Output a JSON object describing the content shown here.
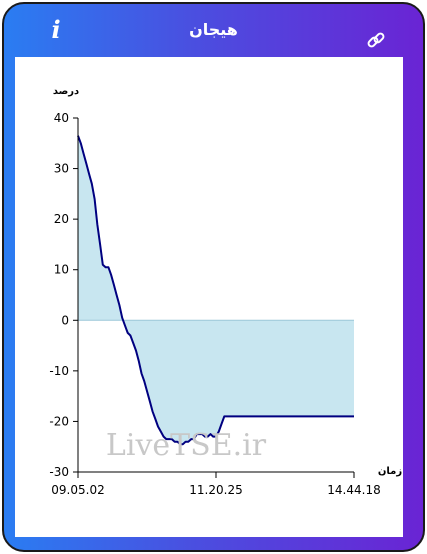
{
  "header": {
    "title": "هیجان",
    "info_icon": "i",
    "link_icon": "link-icon"
  },
  "colors": {
    "gradient_start": "#2a7df2",
    "gradient_end": "#6a24d4",
    "line": "#000080",
    "fill": "#c8e6f0"
  },
  "watermark": "LiveTSE.ir",
  "chart_data": {
    "type": "area",
    "ylabel": "درصد",
    "xlabel": "زمان",
    "ylim": [
      -30,
      40
    ],
    "yticks": [
      40,
      30,
      20,
      10,
      0,
      -10,
      -20,
      -30
    ],
    "xticks": [
      "09.05.02",
      "11.20.25",
      "14.44.18"
    ],
    "xlim": [
      0,
      100
    ],
    "grid": false,
    "values": [
      [
        0,
        36.5
      ],
      [
        1,
        35
      ],
      [
        2,
        33
      ],
      [
        3,
        31
      ],
      [
        4,
        29
      ],
      [
        5,
        27
      ],
      [
        6,
        24
      ],
      [
        7,
        19
      ],
      [
        8,
        15
      ],
      [
        9,
        11
      ],
      [
        10,
        10.5
      ],
      [
        11,
        10.5
      ],
      [
        12,
        9
      ],
      [
        13,
        7
      ],
      [
        14,
        5
      ],
      [
        15,
        3
      ],
      [
        16,
        0.5
      ],
      [
        17,
        -1
      ],
      [
        18,
        -2.5
      ],
      [
        19,
        -3
      ],
      [
        20,
        -4.5
      ],
      [
        21,
        -6
      ],
      [
        22,
        -8
      ],
      [
        23,
        -10.5
      ],
      [
        24,
        -12
      ],
      [
        25,
        -14
      ],
      [
        26,
        -16
      ],
      [
        27,
        -18
      ],
      [
        28,
        -19.5
      ],
      [
        29,
        -21
      ],
      [
        30,
        -22
      ],
      [
        31,
        -23
      ],
      [
        32,
        -23.5
      ],
      [
        33,
        -23.5
      ],
      [
        34,
        -23.5
      ],
      [
        35,
        -24
      ],
      [
        36,
        -24
      ],
      [
        37,
        -24.5
      ],
      [
        38,
        -24.5
      ],
      [
        39,
        -24
      ],
      [
        40,
        -24
      ],
      [
        41,
        -23.5
      ],
      [
        42,
        -23.5
      ],
      [
        43,
        -22.5
      ],
      [
        44,
        -22.5
      ],
      [
        45,
        -22.5
      ],
      [
        46,
        -23
      ],
      [
        47,
        -23
      ],
      [
        48,
        -22.5
      ],
      [
        49,
        -23
      ],
      [
        50,
        -23
      ],
      [
        51,
        -22
      ],
      [
        52,
        -20.5
      ],
      [
        53,
        -19
      ],
      [
        55,
        -19
      ],
      [
        60,
        -19
      ],
      [
        65,
        -19
      ],
      [
        70,
        -19
      ],
      [
        75,
        -19
      ],
      [
        80,
        -19
      ],
      [
        85,
        -19
      ],
      [
        90,
        -19
      ],
      [
        95,
        -19
      ],
      [
        100,
        -19
      ]
    ]
  }
}
